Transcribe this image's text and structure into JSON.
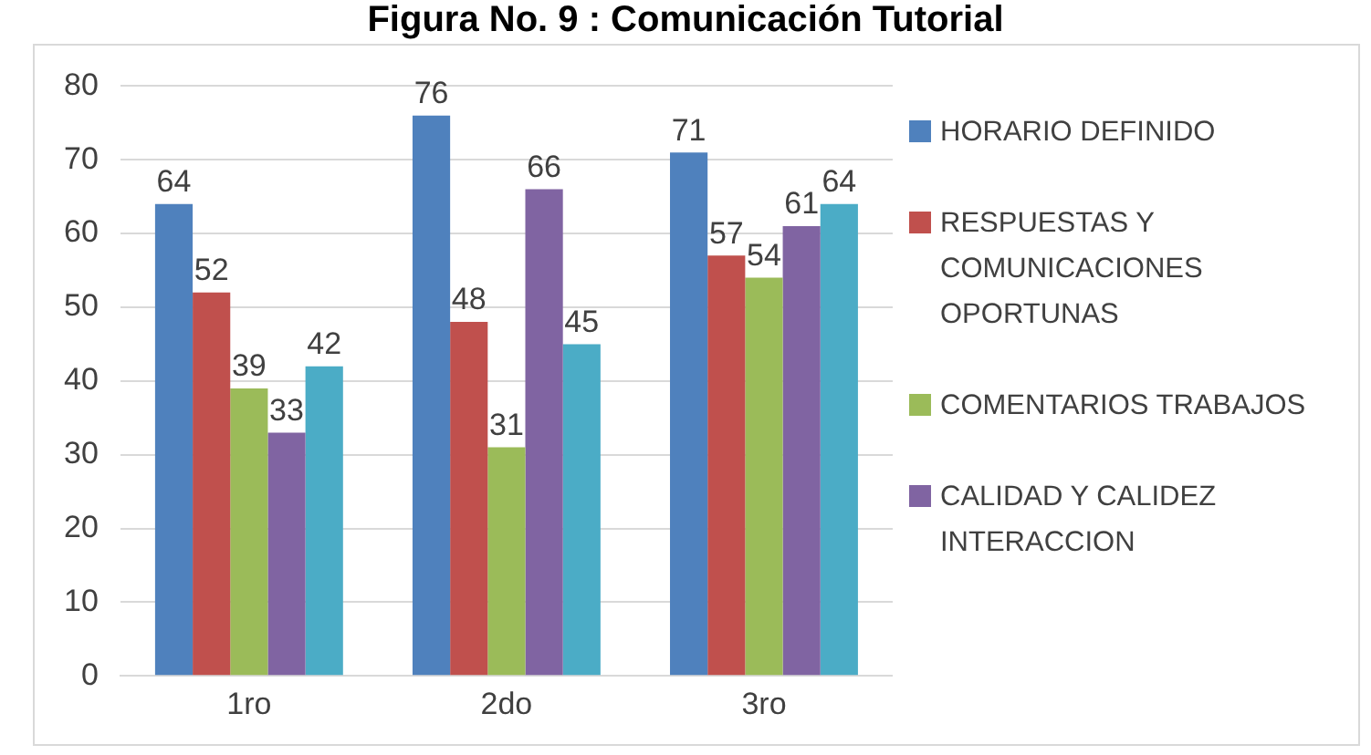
{
  "chart_data": {
    "type": "bar",
    "title": "Figura No. 9 : Comunicación Tutorial",
    "categories": [
      "1ro",
      "2do",
      "3ro"
    ],
    "series": [
      {
        "name": "HORARIO DEFINIDO",
        "color": "#4f81bd",
        "values": [
          64,
          76,
          71
        ]
      },
      {
        "name": "RESPUESTAS Y COMUNICACIONES OPORTUNAS",
        "color": "#c0504d",
        "values": [
          52,
          48,
          57
        ]
      },
      {
        "name": "COMENTARIOS TRABAJOS",
        "color": "#9bbb59",
        "values": [
          39,
          31,
          54
        ]
      },
      {
        "name": "CALIDAD Y CALIDEZ INTERACCION",
        "color": "#8064a2",
        "values": [
          33,
          66,
          61
        ]
      },
      {
        "color": "#4bacc6",
        "values": [
          42,
          45,
          64
        ]
      }
    ],
    "ylim": [
      0,
      80
    ],
    "yticks": [
      0,
      10,
      20,
      30,
      40,
      50,
      60,
      70,
      80
    ],
    "grid": "y",
    "legend": "right",
    "data_labels": true
  }
}
